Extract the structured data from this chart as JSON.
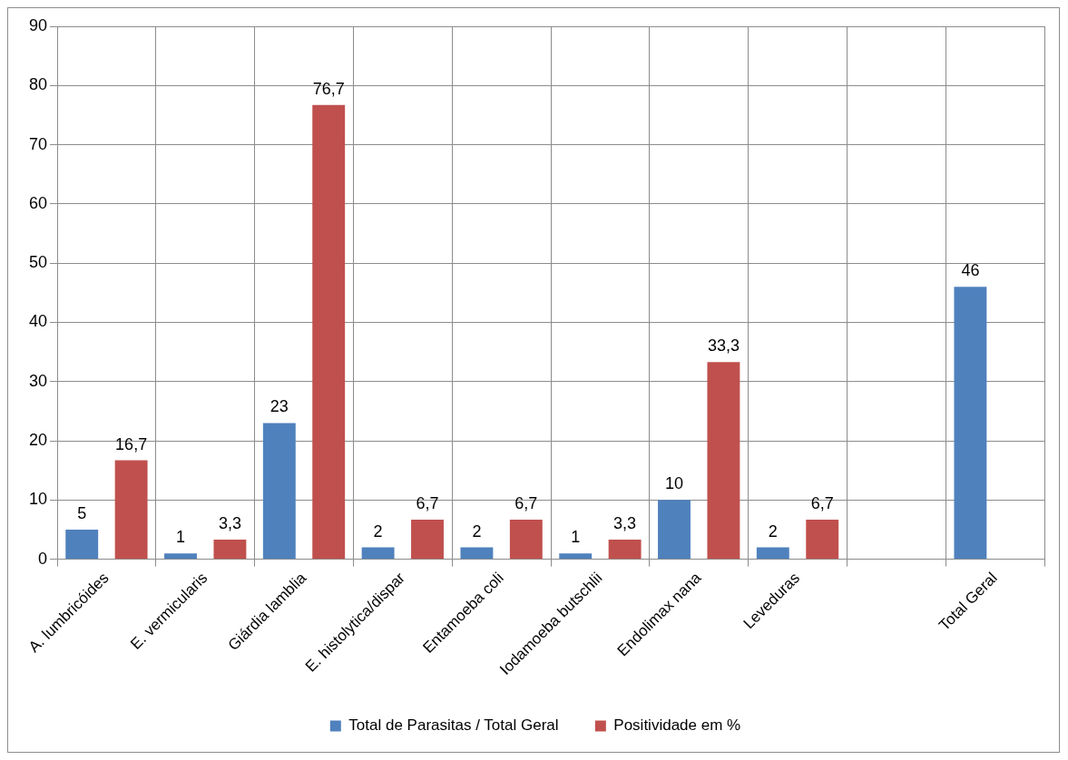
{
  "chart_data": {
    "type": "bar",
    "categories": [
      "A. lumbricóides",
      "E. vermicularis",
      "Giárdia lamblia",
      "E. histolytica/dispar",
      "Entamoeba coli",
      "Iodamoeba butschlii",
      "Endolimax nana",
      "Leveduras",
      null,
      "Total Geral"
    ],
    "series": [
      {
        "name": "Total de Parasitas / Total Geral",
        "color": "#4f81bd",
        "values": [
          5,
          1,
          23,
          2,
          2,
          1,
          10,
          2,
          null,
          46
        ],
        "value_labels": [
          "5",
          "1",
          "23",
          "2",
          "2",
          "1",
          "10",
          "2",
          null,
          "46"
        ]
      },
      {
        "name": "Positividade em %",
        "color": "#c0504d",
        "values": [
          16.7,
          3.3,
          76.7,
          6.7,
          6.7,
          3.3,
          33.3,
          6.7,
          null,
          null
        ],
        "value_labels": [
          "16,7",
          "3,3",
          "76,7",
          "6,7",
          "6,7",
          "3,3",
          "33,3",
          "6,7",
          null,
          null
        ]
      }
    ],
    "ylim": [
      0,
      90
    ],
    "yticks": [
      0,
      10,
      20,
      30,
      40,
      50,
      60,
      70,
      80,
      90
    ],
    "grid": true,
    "legend": "bottom"
  }
}
